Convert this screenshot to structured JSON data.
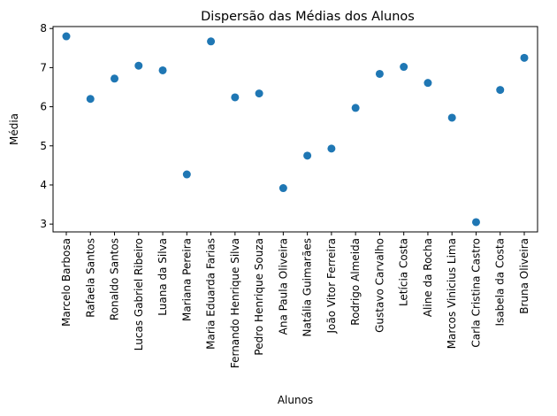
{
  "chart_data": {
    "type": "scatter",
    "title": "Dispersão das Médias dos Alunos",
    "xlabel": "Alunos",
    "ylabel": "Média",
    "ylim": [
      2.8,
      8.05
    ],
    "yticks": [
      3,
      4,
      5,
      6,
      7,
      8
    ],
    "grid": false,
    "marker_color": "#1f77b4",
    "categories": [
      "Marcelo Barbosa",
      "Rafaela Santos",
      "Ronaldo Santos",
      "Lucas Gabriel Ribeiro",
      "Luana da Silva",
      "Mariana Pereira",
      "Maria Eduarda Farias",
      "Fernando Henrique Silva",
      "Pedro Henrique Souza",
      "Ana Paula Oliveira",
      "Natália Guimarães",
      "João Vitor Ferreira",
      "Rodrigo Almeida",
      "Gustavo Carvalho",
      "Letícia Costa",
      "Aline da Rocha",
      "Marcos Vinicius Lima",
      "Carla Cristina Castro",
      "Isabela da Costa",
      "Bruna Oliveira"
    ],
    "values": [
      7.8,
      6.2,
      6.72,
      7.05,
      6.93,
      4.27,
      7.67,
      6.24,
      6.34,
      3.92,
      4.75,
      4.93,
      5.97,
      6.84,
      7.02,
      6.61,
      5.72,
      3.05,
      6.43,
      7.25
    ]
  }
}
